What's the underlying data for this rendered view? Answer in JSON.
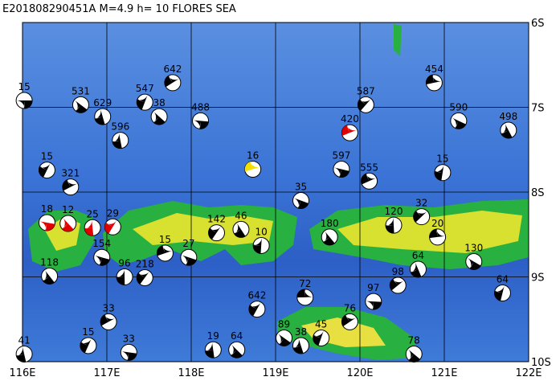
{
  "map": {
    "title": "E201808290451A M=4.9 h= 10 FLORES SEA",
    "xlim": [
      116,
      122
    ],
    "ylim": [
      -10,
      -6
    ],
    "xticks": [
      {
        "value": 116,
        "label": "116E"
      },
      {
        "value": 117,
        "label": "117E"
      },
      {
        "value": 118,
        "label": "118E"
      },
      {
        "value": 119,
        "label": "119E"
      },
      {
        "value": 120,
        "label": "120E"
      },
      {
        "value": 121,
        "label": "121E"
      },
      {
        "value": 122,
        "label": "122E"
      }
    ],
    "yticks": [
      {
        "value": -6,
        "label": "6S"
      },
      {
        "value": -7,
        "label": "7S"
      },
      {
        "value": -8,
        "label": "8S"
      },
      {
        "value": -9,
        "label": "9S"
      },
      {
        "value": -10,
        "label": "10S"
      }
    ],
    "events": [
      {
        "lon": 116.02,
        "lat": -6.92,
        "depth": 15,
        "color": "#000"
      },
      {
        "lon": 116.69,
        "lat": -6.97,
        "depth": 531,
        "color": "#000"
      },
      {
        "lon": 116.95,
        "lat": -7.11,
        "depth": 629,
        "color": "#000"
      },
      {
        "lon": 117.45,
        "lat": -6.94,
        "depth": 547,
        "color": "#000"
      },
      {
        "lon": 117.78,
        "lat": -6.71,
        "depth": 642,
        "color": "#000"
      },
      {
        "lon": 118.11,
        "lat": -7.16,
        "depth": 488,
        "color": "#000"
      },
      {
        "lon": 117.62,
        "lat": -7.11,
        "depth": 38,
        "color": "#000"
      },
      {
        "lon": 117.16,
        "lat": -7.39,
        "depth": 596,
        "color": "#000"
      },
      {
        "lon": 116.29,
        "lat": -7.74,
        "depth": 15,
        "color": "#000"
      },
      {
        "lon": 116.57,
        "lat": -7.94,
        "depth": 321,
        "color": "#000"
      },
      {
        "lon": 116.29,
        "lat": -8.36,
        "depth": 18,
        "color": "#e00000"
      },
      {
        "lon": 116.54,
        "lat": -8.37,
        "depth": 12,
        "color": "#e00000"
      },
      {
        "lon": 116.83,
        "lat": -8.42,
        "depth": 25,
        "color": "#e00000"
      },
      {
        "lon": 117.07,
        "lat": -8.41,
        "depth": 29,
        "color": "#e00000"
      },
      {
        "lon": 119.88,
        "lat": -7.3,
        "depth": 420,
        "color": "#e00000"
      },
      {
        "lon": 116.94,
        "lat": -8.77,
        "depth": 154,
        "color": "#000"
      },
      {
        "lon": 116.32,
        "lat": -8.99,
        "depth": 118,
        "color": "#000"
      },
      {
        "lon": 117.21,
        "lat": -9.0,
        "depth": 96,
        "color": "#000"
      },
      {
        "lon": 117.45,
        "lat": -9.01,
        "depth": 218,
        "color": "#000"
      },
      {
        "lon": 118.73,
        "lat": -7.73,
        "depth": 16,
        "color": "#f0e000"
      },
      {
        "lon": 119.3,
        "lat": -8.1,
        "depth": 35,
        "color": "#000"
      },
      {
        "lon": 118.59,
        "lat": -8.44,
        "depth": 46,
        "color": "#000"
      },
      {
        "lon": 118.83,
        "lat": -8.63,
        "depth": 10,
        "color": "#000"
      },
      {
        "lon": 120.07,
        "lat": -6.97,
        "depth": 587,
        "color": "#000"
      },
      {
        "lon": 120.88,
        "lat": -6.71,
        "depth": 454,
        "color": "#000"
      },
      {
        "lon": 121.17,
        "lat": -7.16,
        "depth": 590,
        "color": "#000"
      },
      {
        "lon": 121.76,
        "lat": -7.27,
        "depth": 498,
        "color": "#000"
      },
      {
        "lon": 120.98,
        "lat": -7.77,
        "depth": 15,
        "color": "#000"
      },
      {
        "lon": 120.73,
        "lat": -8.29,
        "depth": 32,
        "color": "#000"
      },
      {
        "lon": 120.92,
        "lat": -8.53,
        "depth": 20,
        "color": "#000"
      },
      {
        "lon": 121.35,
        "lat": -8.82,
        "depth": 130,
        "color": "#000"
      },
      {
        "lon": 120.69,
        "lat": -8.91,
        "depth": 64,
        "color": "#000"
      },
      {
        "lon": 121.69,
        "lat": -9.19,
        "depth": 64,
        "color": "#000"
      },
      {
        "lon": 120.45,
        "lat": -9.1,
        "depth": 98,
        "color": "#000"
      },
      {
        "lon": 119.35,
        "lat": -9.24,
        "depth": 72,
        "color": "#000"
      },
      {
        "lon": 119.1,
        "lat": -9.72,
        "depth": 89,
        "color": "#000"
      },
      {
        "lon": 119.3,
        "lat": -9.81,
        "depth": 38,
        "color": "#000"
      },
      {
        "lon": 119.54,
        "lat": -9.72,
        "depth": 45,
        "color": "#000"
      },
      {
        "lon": 119.88,
        "lat": -9.53,
        "depth": 76,
        "color": "#000"
      },
      {
        "lon": 120.16,
        "lat": -9.29,
        "depth": 97,
        "color": "#000"
      },
      {
        "lon": 120.64,
        "lat": -9.91,
        "depth": 78,
        "color": "#000"
      },
      {
        "lon": 116.02,
        "lat": -9.91,
        "depth": 41,
        "color": "#000"
      },
      {
        "lon": 116.78,
        "lat": -9.81,
        "depth": 15,
        "color": "#000"
      },
      {
        "lon": 117.02,
        "lat": -9.53,
        "depth": 33,
        "color": "#000"
      },
      {
        "lon": 117.26,
        "lat": -9.89,
        "depth": 33,
        "color": "#000"
      },
      {
        "lon": 118.54,
        "lat": -9.86,
        "depth": 64,
        "color": "#000"
      },
      {
        "lon": 118.26,
        "lat": -9.86,
        "depth": 19,
        "color": "#000"
      },
      {
        "lon": 118.78,
        "lat": -9.38,
        "depth": 642,
        "color": "#000"
      },
      {
        "lon": 120.11,
        "lat": -7.87,
        "depth": 555,
        "color": "#000"
      },
      {
        "lon": 119.78,
        "lat": -7.73,
        "depth": 597,
        "color": "#000"
      },
      {
        "lon": 119.64,
        "lat": -8.53,
        "depth": 180,
        "color": "#000"
      },
      {
        "lon": 120.4,
        "lat": -8.39,
        "depth": 120,
        "color": "#000"
      },
      {
        "lon": 118.3,
        "lat": -8.48,
        "depth": 142,
        "color": "#000"
      },
      {
        "lon": 117.69,
        "lat": -8.72,
        "depth": 15,
        "color": "#000"
      },
      {
        "lon": 117.97,
        "lat": -8.77,
        "depth": 27,
        "color": "#000"
      }
    ]
  }
}
